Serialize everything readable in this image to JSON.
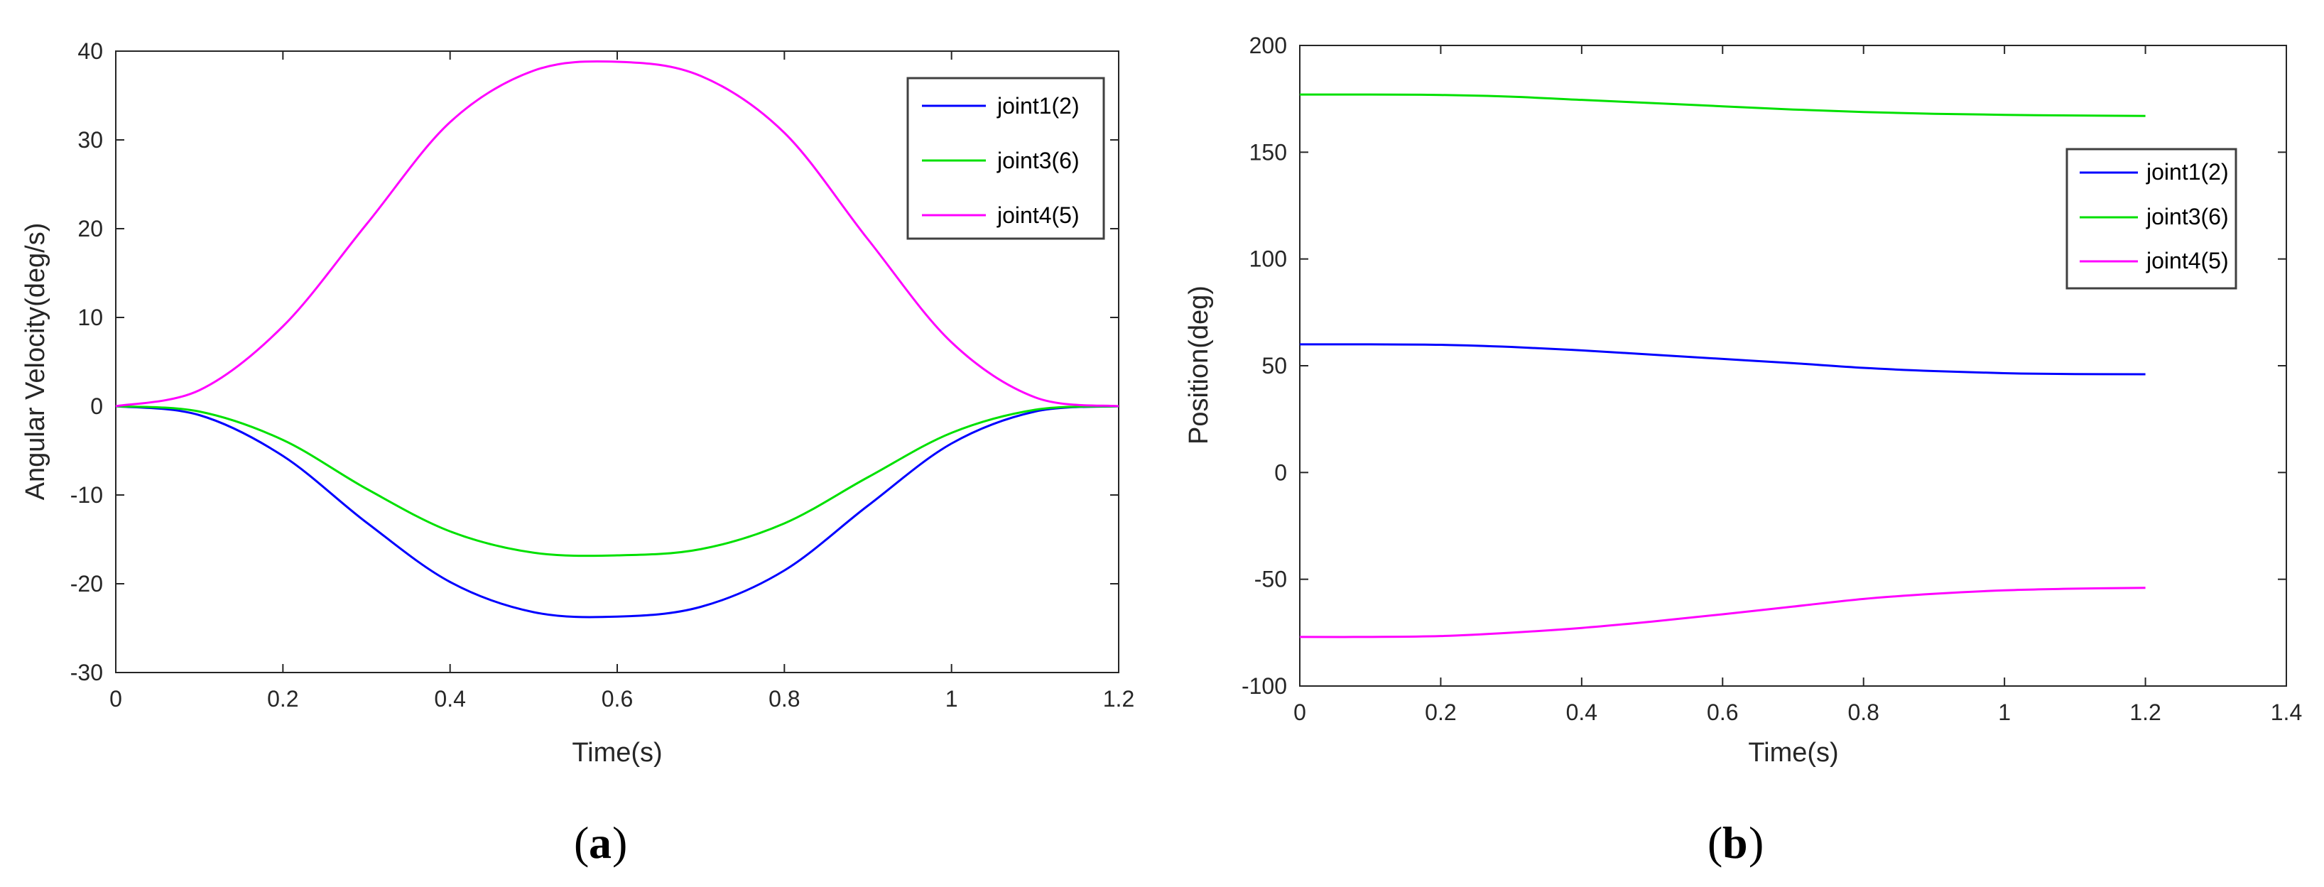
{
  "chart_data": [
    {
      "type": "line",
      "caption_letter": "a",
      "xlabel": "Time(s)",
      "ylabel": "Angular Velocity(deg/s)",
      "xlim": [
        0,
        1.2
      ],
      "ylim": [
        -30,
        40
      ],
      "xticks": [
        0,
        0.2,
        0.4,
        0.6,
        0.8,
        1,
        1.2
      ],
      "xtick_labels": [
        "0",
        "0.2",
        "0.4",
        "0.6",
        "0.8",
        "1",
        "1.2"
      ],
      "yticks": [
        -30,
        -20,
        -10,
        0,
        10,
        20,
        30,
        40
      ],
      "ytick_labels": [
        "-30",
        "-20",
        "-10",
        "0",
        "10",
        "20",
        "30",
        "40"
      ],
      "legend_position": "top-right",
      "x": [
        0,
        0.1,
        0.2,
        0.3,
        0.4,
        0.5,
        0.6,
        0.7,
        0.8,
        0.9,
        1.0,
        1.1,
        1.2
      ],
      "series": [
        {
          "name": "joint1(2)",
          "color": "#0000ff",
          "values": [
            0,
            -1.0,
            -5.6,
            -13.1,
            -19.8,
            -23.2,
            -23.7,
            -22.6,
            -18.5,
            -11.2,
            -4.2,
            -0.6,
            0
          ]
        },
        {
          "name": "joint3(6)",
          "color": "#00e000",
          "values": [
            0,
            -0.6,
            -3.8,
            -9.3,
            -14.1,
            -16.5,
            -16.8,
            -16.1,
            -13.2,
            -8.0,
            -3.0,
            -0.4,
            0
          ]
        },
        {
          "name": "joint4(5)",
          "color": "#ff00ff",
          "values": [
            0,
            1.8,
            9.0,
            20.5,
            32.0,
            37.8,
            38.8,
            37.2,
            30.8,
            18.8,
            7.2,
            1.0,
            0
          ]
        }
      ]
    },
    {
      "type": "line",
      "caption_letter": "b",
      "xlabel": "Time(s)",
      "ylabel": "Position(deg)",
      "xlim": [
        0,
        1.4
      ],
      "ylim": [
        -100,
        200
      ],
      "xticks": [
        0,
        0.2,
        0.4,
        0.6,
        0.8,
        1,
        1.2,
        1.4
      ],
      "xtick_labels": [
        "0",
        "0.2",
        "0.4",
        "0.6",
        "0.8",
        "1",
        "1.2",
        "1.4"
      ],
      "yticks": [
        -100,
        -50,
        0,
        50,
        100,
        150,
        200
      ],
      "ytick_labels": [
        "-100",
        "-50",
        "0",
        "50",
        "100",
        "150",
        "200"
      ],
      "legend_position": "upper-right",
      "x": [
        0,
        0.1,
        0.2,
        0.3,
        0.4,
        0.5,
        0.6,
        0.7,
        0.8,
        0.9,
        1.0,
        1.1,
        1.2
      ],
      "series": [
        {
          "name": "joint1(2)",
          "color": "#0000ff",
          "values": [
            60,
            60,
            59.8,
            58.8,
            57.2,
            55.2,
            53.2,
            51.2,
            49.0,
            47.5,
            46.5,
            46.1,
            46
          ]
        },
        {
          "name": "joint3(6)",
          "color": "#00e000",
          "values": [
            177,
            177,
            176.8,
            176.0,
            174.5,
            173.0,
            171.5,
            170.0,
            168.8,
            168.0,
            167.5,
            167.2,
            167
          ]
        },
        {
          "name": "joint4(5)",
          "color": "#ff00ff",
          "values": [
            -77,
            -77,
            -76.6,
            -75.0,
            -72.8,
            -69.8,
            -66.4,
            -62.8,
            -59.2,
            -56.8,
            -55.2,
            -54.4,
            -54
          ]
        }
      ]
    }
  ]
}
